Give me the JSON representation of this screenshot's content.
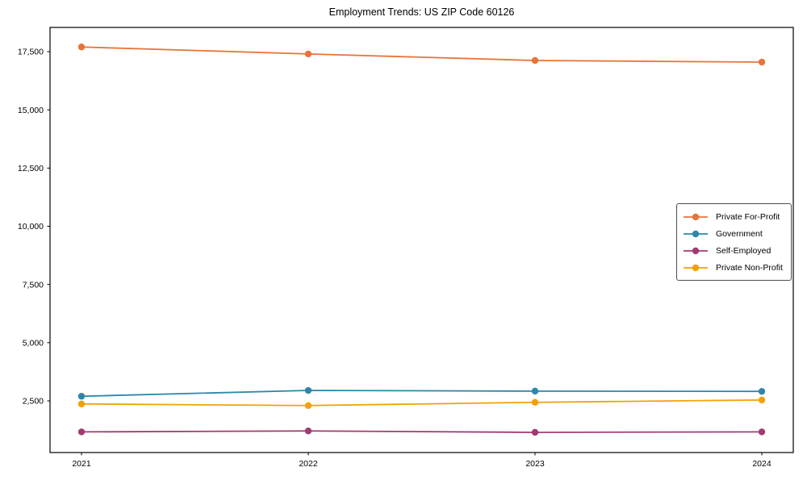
{
  "title": "Employment Trends: US ZIP Code 60126",
  "chart_data": {
    "type": "line",
    "title": "Employment Trends: US ZIP Code 60126",
    "xlabel": "",
    "ylabel": "",
    "categories": [
      "2021",
      "2022",
      "2023",
      "2024"
    ],
    "series": [
      {
        "name": "Private For-Profit",
        "color": "#E8743B",
        "values": [
          17700,
          17400,
          17120,
          17050
        ]
      },
      {
        "name": "Government",
        "color": "#2E86AB",
        "values": [
          2700,
          2950,
          2920,
          2910
        ]
      },
      {
        "name": "Self-Employed",
        "color": "#A23B72",
        "values": [
          1170,
          1210,
          1150,
          1170
        ]
      },
      {
        "name": "Private Non-Profit",
        "color": "#F1A208",
        "values": [
          2370,
          2300,
          2440,
          2540
        ]
      }
    ],
    "yticks": [
      2500,
      5000,
      7500,
      10000,
      12500,
      15000,
      17500
    ],
    "ytick_labels": [
      "2,500",
      "5,000",
      "7,500",
      "10,000",
      "12,500",
      "15,000",
      "17,500"
    ],
    "ylim": [
      283,
      18540
    ],
    "grid": false,
    "legend_position": "center-right",
    "marker": "circle"
  }
}
